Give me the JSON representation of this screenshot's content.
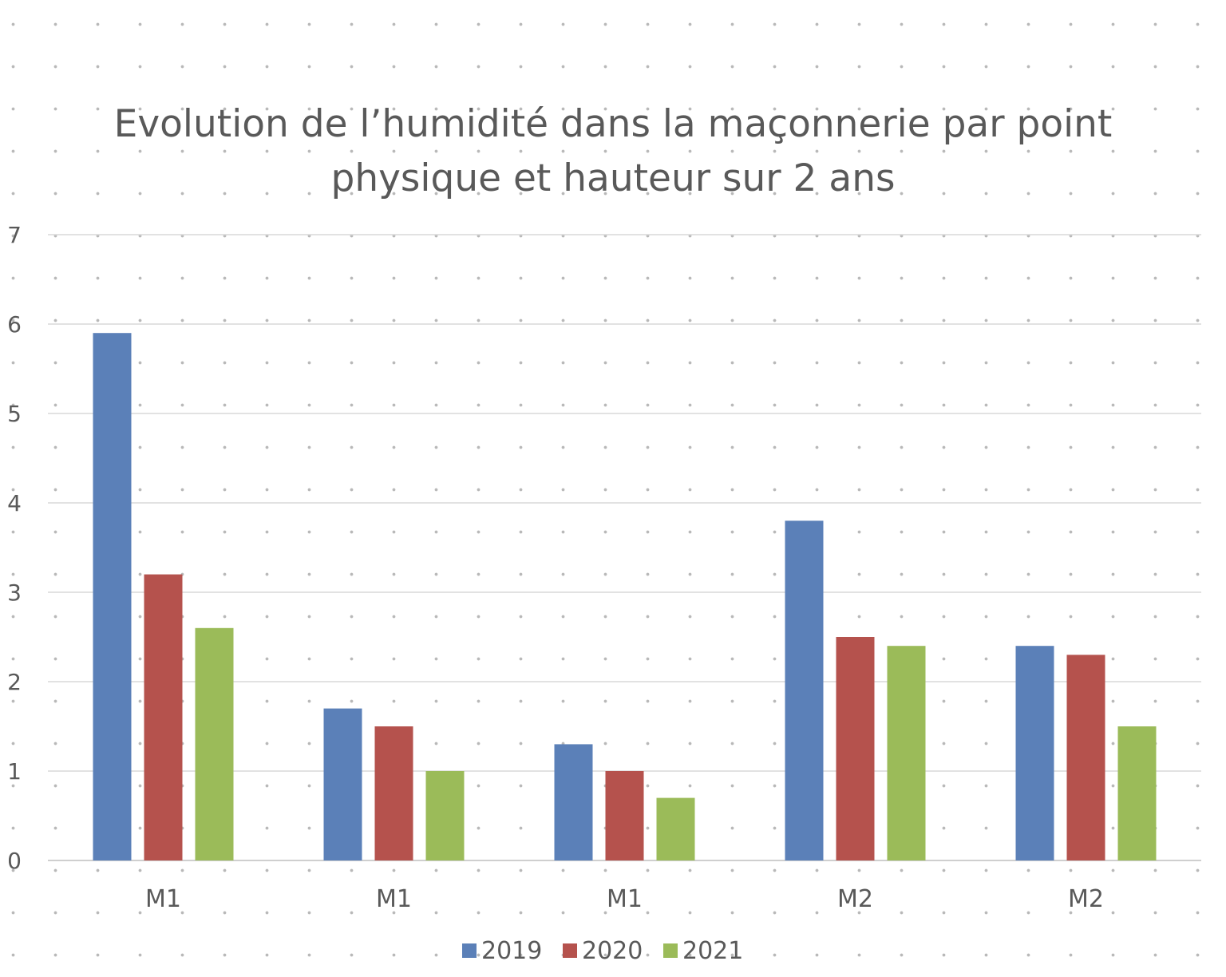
{
  "chart_data": {
    "type": "bar",
    "title_lines": [
      "Evolution de l’humidité dans la maçonnerie par point",
      "physique et hauteur sur 2 ans"
    ],
    "categories": [
      "M1",
      "M1",
      "M1",
      "M2",
      "M2"
    ],
    "series": [
      {
        "name": "2019",
        "color": "#5b80b8",
        "values": [
          5.9,
          1.7,
          1.3,
          3.8,
          2.4
        ]
      },
      {
        "name": "2020",
        "color": "#b5524d",
        "values": [
          3.2,
          1.5,
          1.0,
          2.5,
          2.3
        ]
      },
      {
        "name": "2021",
        "color": "#9bbb59",
        "values": [
          2.6,
          1.0,
          0.7,
          2.4,
          1.5
        ]
      }
    ],
    "ylim": [
      0,
      7
    ],
    "yticks": [
      "0",
      "1",
      "2",
      "3",
      "4",
      "5",
      "6",
      "7"
    ],
    "grid": true,
    "legend_position": "bottom",
    "xlabel": "",
    "ylabel": ""
  }
}
